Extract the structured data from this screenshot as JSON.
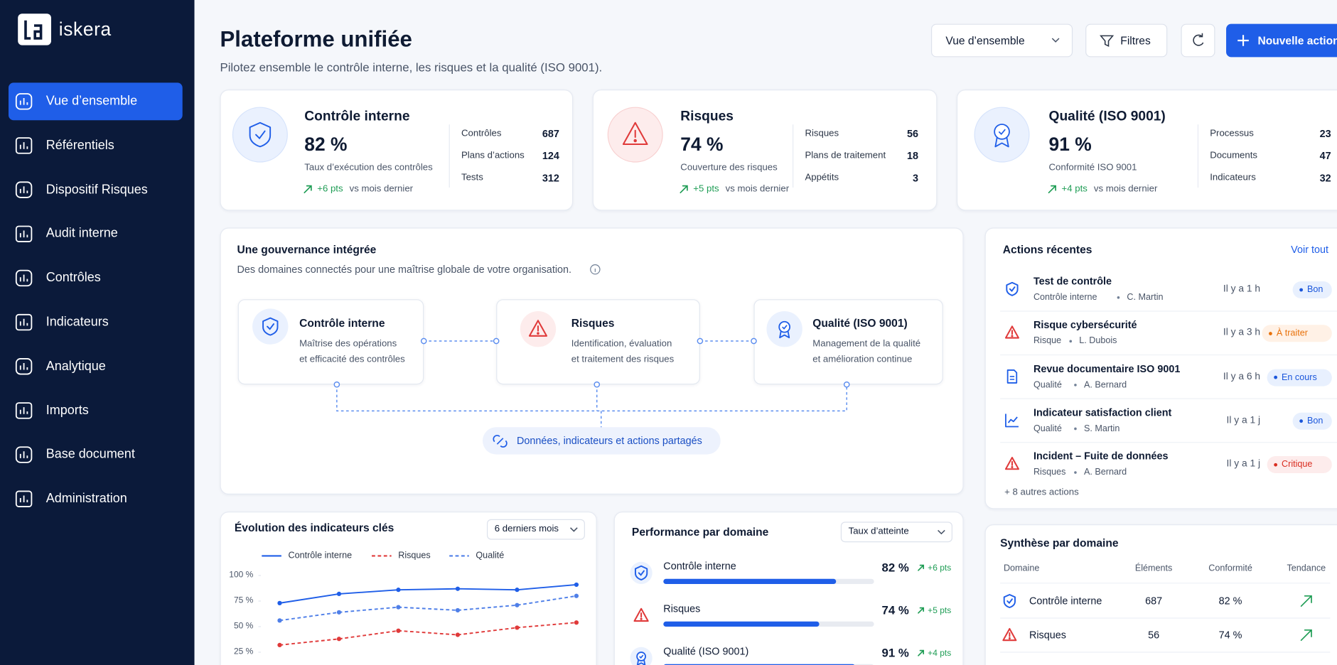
{
  "sidebar": {
    "brand": "iskera",
    "active": 0,
    "nav": [
      "Vue d’ensemble",
      "Référentiels",
      "Dispositif Risques",
      "Audit interne",
      "Contrôles",
      "Indicateurs",
      "Analytique",
      "Imports",
      "Base document",
      "Administration"
    ]
  },
  "header": {
    "title": "Plateforme unifiée",
    "subtitle": "Pilotez ensemble le contrôle interne, les risques et la qualité (ISO 9001).",
    "view_select": "Vue d’ensemble",
    "filters": "Filtres",
    "new_action": "Nouvelle action"
  },
  "kpis": [
    {
      "title": "Contrôle interne",
      "value": "82 %",
      "description": "Taux d’exécution des contrôles",
      "trend": "+6 pts",
      "trend_note": "vs mois dernier",
      "stats": [
        {
          "label": "Contrôles",
          "value": "687"
        },
        {
          "label": "Plans d’actions",
          "value": "124"
        },
        {
          "label": "Tests",
          "value": "312"
        }
      ]
    },
    {
      "title": "Risques",
      "value": "74 %",
      "description": "Couverture des risques",
      "trend": "+5 pts",
      "trend_note": "vs mois dernier",
      "stats": [
        {
          "label": "Risques",
          "value": "56"
        },
        {
          "label": "Plans de traitement",
          "value": "18"
        },
        {
          "label": "Appétits",
          "value": "3"
        }
      ]
    },
    {
      "title": "Qualité (ISO 9001)",
      "value": "91 %",
      "description": "Conformité ISO 9001",
      "trend": "+4 pts",
      "trend_note": "vs mois dernier",
      "stats": [
        {
          "label": "Processus",
          "value": "23"
        },
        {
          "label": "Documents",
          "value": "47"
        },
        {
          "label": "Indicateurs",
          "value": "32"
        }
      ]
    }
  ],
  "governance": {
    "title": "Une gouvernance intégrée",
    "subtitle": "Des domaines connectés pour une maîtrise globale de votre organisation.",
    "nodes": [
      {
        "title": "Contrôle interne",
        "description": [
          "Maîtrise des opérations",
          "et efficacité des contrôles"
        ]
      },
      {
        "title": "Risques",
        "description": [
          "Identification, évaluation",
          "et traitement des risques"
        ]
      },
      {
        "title": "Qualité (ISO 9001)",
        "description": [
          "Management de la qualité",
          "et amélioration continue"
        ]
      }
    ],
    "shared": "Données, indicateurs et actions partagés"
  },
  "recent_actions": {
    "title": "Actions récentes",
    "link": "Voir tout",
    "more": "+ 8 autres actions",
    "items": [
      {
        "title": "Test de contrôle",
        "domain": "Contrôle interne",
        "person": "C. Martin",
        "time": "Il y a 1 h",
        "status": "Bon"
      },
      {
        "title": "Risque cybersécurité",
        "domain": "Risque",
        "person": "L. Dubois",
        "time": "Il y a 3 h",
        "status": "À traiter"
      },
      {
        "title": "Revue documentaire ISO 9001",
        "domain": "Qualité",
        "person": "A. Bernard",
        "time": "Il y a 6 h",
        "status": "En cours"
      },
      {
        "title": "Indicateur satisfaction client",
        "domain": "Qualité",
        "person": "S. Martin",
        "time": "Il y a 1 j",
        "status": "Bon"
      },
      {
        "title": "Incident – Fuite de données",
        "domain": "Risques",
        "person": "A. Bernard",
        "time": "Il y a 1 j",
        "status": "Critique"
      }
    ]
  },
  "chart_data": {
    "type": "line",
    "title": "Évolution des indicateurs clés",
    "period_select": "6 derniers mois",
    "categories": [
      null,
      null,
      null,
      null,
      null,
      null
    ],
    "series": [
      {
        "name": "Contrôle interne",
        "color": "#1f5ee8",
        "dashed": false,
        "values": [
          73,
          82,
          86,
          87,
          86,
          91
        ]
      },
      {
        "name": "Risques",
        "color": "#e03a3a",
        "dashed": true,
        "values": [
          32,
          38,
          46,
          42,
          49,
          54
        ]
      },
      {
        "name": "Qualité",
        "color": "#4f7fe8",
        "dashed": true,
        "values": [
          56,
          64,
          69,
          66,
          71,
          80
        ]
      }
    ],
    "ylim": [
      0,
      100
    ],
    "yticks": [
      {
        "value": 100,
        "label": "100 %"
      },
      {
        "value": 75,
        "label": "75 %"
      },
      {
        "value": 50,
        "label": "50 %"
      },
      {
        "value": 25,
        "label": "25 %"
      }
    ]
  },
  "performance": {
    "title": "Performance par domaine",
    "select": "Taux d’atteinte",
    "max": 100,
    "color": "#1f5ee8",
    "rows": [
      {
        "name": "Contrôle interne",
        "value": 82,
        "value_label": "82 %",
        "delta": "+6 pts"
      },
      {
        "name": "Risques",
        "value": 74,
        "value_label": "74 %",
        "delta": "+5 pts"
      },
      {
        "name": "Qualité (ISO 9001)",
        "value": 91,
        "value_label": "91 %",
        "delta": "+4 pts"
      }
    ]
  },
  "synthesis": {
    "title": "Synthèse par domaine",
    "headers": [
      "Domaine",
      "Éléments",
      "Conformité",
      "Tendance"
    ],
    "rows": [
      [
        "Contrôle interne",
        "687",
        "82 %"
      ],
      [
        "Risques",
        "56",
        "74 %"
      ]
    ]
  }
}
